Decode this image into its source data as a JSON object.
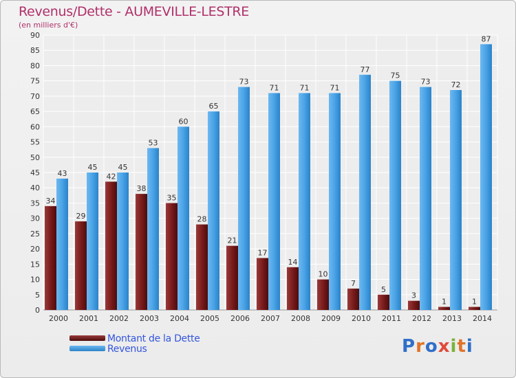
{
  "title": "Revenus/Dette - AUMEVILLE-LESTRE",
  "subtitle": "(en milliers d'€)",
  "logo": {
    "text": "Proxiti",
    "colors": [
      "#2f6fc8",
      "#e0732a",
      "#2f6fc8",
      "#e04a3a",
      "#7ab33a",
      "#e0732a",
      "#2f6fc8"
    ]
  },
  "chart_data": {
    "type": "bar",
    "title": "Revenus/Dette - AUMEVILLE-LESTRE",
    "ylabel": "(en milliers d'€)",
    "xlabel": "",
    "ylim": [
      0,
      90
    ],
    "yticks": [
      0,
      5,
      10,
      15,
      20,
      25,
      30,
      35,
      40,
      45,
      50,
      55,
      60,
      65,
      70,
      75,
      80,
      85,
      90
    ],
    "grid": true,
    "legend_position": "bottom-left",
    "categories": [
      "2000",
      "2001",
      "2002",
      "2003",
      "2004",
      "2005",
      "2006",
      "2007",
      "2008",
      "2009",
      "2010",
      "2011",
      "2012",
      "2013",
      "2014"
    ],
    "series": [
      {
        "name": "Montant de la Dette",
        "color": "#7a1c1c",
        "values": [
          34,
          29,
          42,
          38,
          35,
          28,
          21,
          17,
          14,
          10,
          7,
          5,
          3,
          1,
          1
        ]
      },
      {
        "name": "Revenus",
        "color": "#4aa3e6",
        "values": [
          43,
          45,
          45,
          53,
          60,
          65,
          73,
          71,
          71,
          71,
          77,
          75,
          73,
          72,
          87
        ]
      }
    ]
  }
}
